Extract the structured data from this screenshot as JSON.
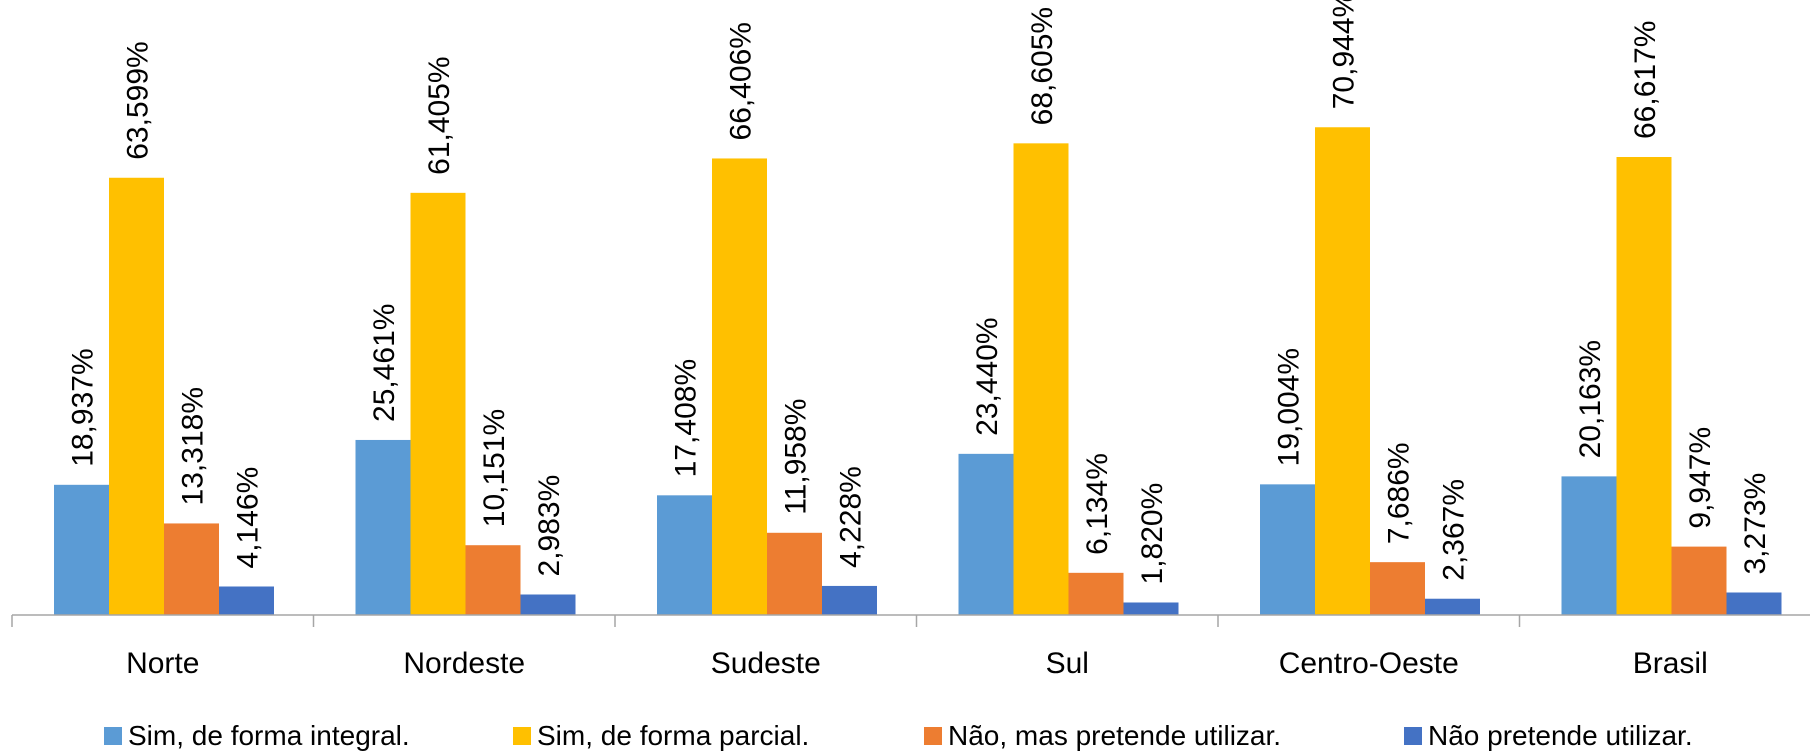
{
  "chart_data": {
    "type": "bar",
    "categories": [
      "Norte",
      "Nordeste",
      "Sudeste",
      "Sul",
      "Centro-Oeste",
      "Brasil"
    ],
    "series": [
      {
        "name": "Sim, de forma integral.",
        "color": "#5B9BD5",
        "values": [
          18.937,
          25.461,
          17.408,
          23.44,
          19.004,
          20.163
        ],
        "labels": [
          "18,937%",
          "25,461%",
          "17,408%",
          "23,440%",
          "19,004%",
          "20,163%"
        ]
      },
      {
        "name": "Sim, de forma parcial.",
        "color": "#FFC000",
        "values": [
          63.599,
          61.405,
          66.406,
          68.605,
          70.944,
          66.617
        ],
        "labels": [
          "63,599%",
          "61,405%",
          "66,406%",
          "68,605%",
          "70,944%",
          "66,617%"
        ]
      },
      {
        "name": "Não, mas pretende utilizar.",
        "color": "#ED7D31",
        "values": [
          13.318,
          10.151,
          11.958,
          6.134,
          7.686,
          9.947
        ],
        "labels": [
          "13,318%",
          "10,151%",
          "11,958%",
          "6,134%",
          "7,686%",
          "9,947%"
        ]
      },
      {
        "name": "Não pretende utilizar.",
        "color": "#4472C4",
        "values": [
          4.146,
          2.983,
          4.228,
          1.82,
          2.367,
          3.273
        ],
        "labels": [
          "4,146%",
          "2,983%",
          "4,228%",
          "1,820%",
          "2,367%",
          "3,273%"
        ]
      }
    ],
    "axis_color": "#A6A6A6",
    "ylim": [
      0,
      80
    ],
    "grid": false,
    "legend_position": "bottom",
    "title": "",
    "xlabel": "",
    "ylabel": ""
  }
}
